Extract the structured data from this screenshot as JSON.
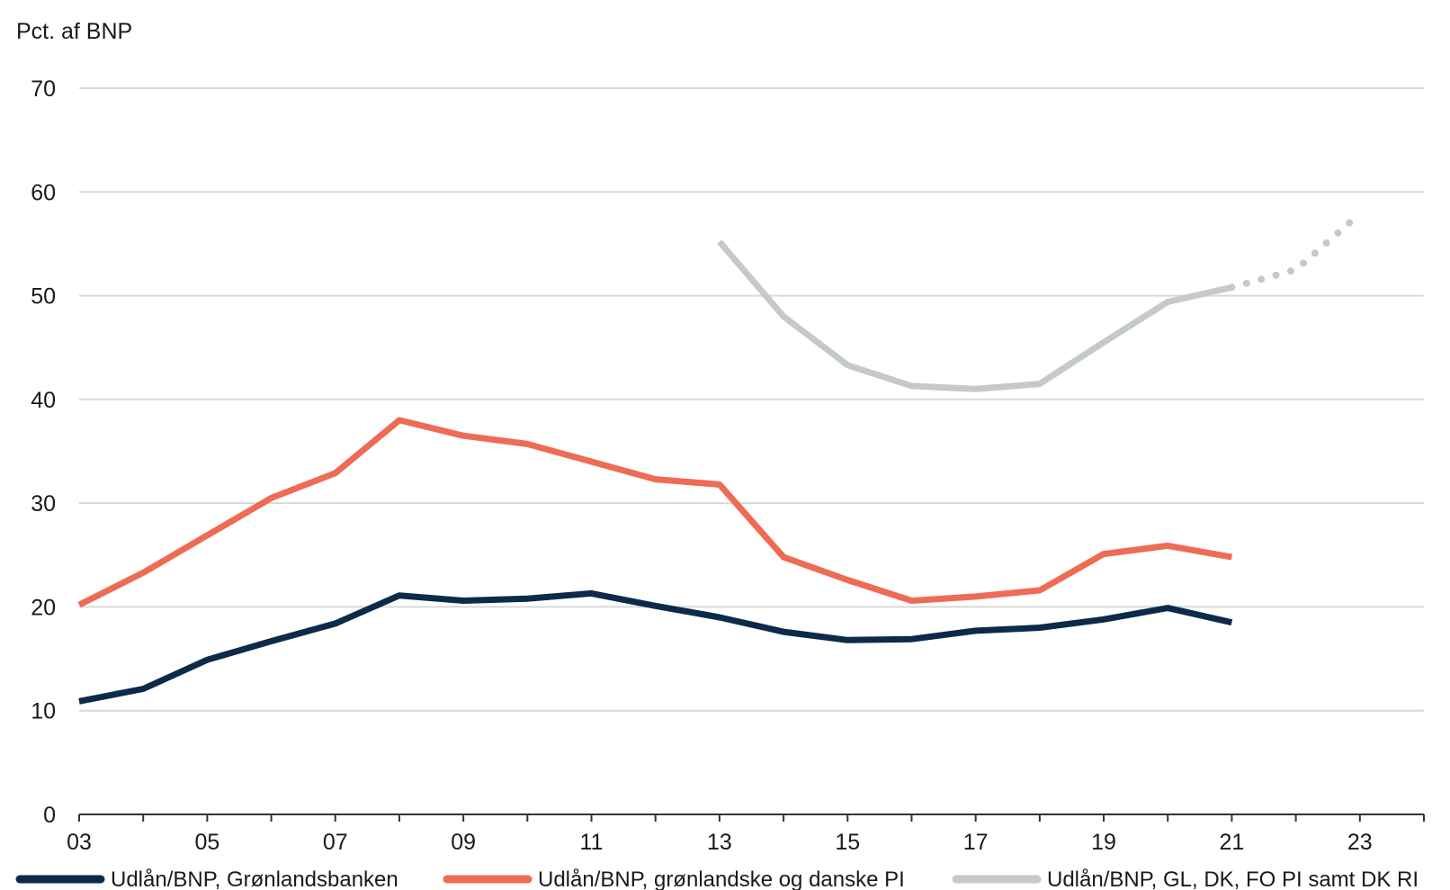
{
  "chart_data": {
    "type": "line",
    "ylabel": "Pct. af BNP",
    "ylim": [
      0,
      70
    ],
    "yticks": [
      0,
      10,
      20,
      30,
      40,
      50,
      60,
      70
    ],
    "xlim": [
      2003,
      2024
    ],
    "xticks": [
      {
        "value": 2003,
        "label": "03"
      },
      {
        "value": 2005,
        "label": "05"
      },
      {
        "value": 2007,
        "label": "07"
      },
      {
        "value": 2009,
        "label": "09"
      },
      {
        "value": 2011,
        "label": "11"
      },
      {
        "value": 2013,
        "label": "13"
      },
      {
        "value": 2015,
        "label": "15"
      },
      {
        "value": 2017,
        "label": "17"
      },
      {
        "value": 2019,
        "label": "19"
      },
      {
        "value": 2021,
        "label": "21"
      },
      {
        "value": 2023,
        "label": "23"
      }
    ],
    "grid": "horizontal",
    "legend_position": "bottom",
    "series": [
      {
        "name": "Udlån/BNP, Grønlandsbanken",
        "color": "#0d2a4a",
        "style": "solid",
        "x": [
          2003,
          2004,
          2005,
          2006,
          2007,
          2008,
          2009,
          2010,
          2011,
          2012,
          2013,
          2014,
          2015,
          2016,
          2017,
          2018,
          2019,
          2020,
          2021
        ],
        "values": [
          10.9,
          12.1,
          14.9,
          16.7,
          18.4,
          21.1,
          20.6,
          20.8,
          21.3,
          20.1,
          19.0,
          17.6,
          16.8,
          16.9,
          17.7,
          18.0,
          18.8,
          19.9,
          18.5
        ]
      },
      {
        "name": "Udlån/BNP, grønlandske og danske PI",
        "color": "#ee6b55",
        "style": "solid",
        "x": [
          2003,
          2004,
          2005,
          2006,
          2007,
          2008,
          2009,
          2010,
          2011,
          2012,
          2013,
          2014,
          2015,
          2016,
          2017,
          2018,
          2019,
          2020,
          2021
        ],
        "values": [
          20.2,
          23.3,
          26.9,
          30.5,
          32.9,
          38.0,
          36.5,
          35.7,
          34.0,
          32.3,
          31.8,
          24.8,
          22.6,
          20.6,
          21.0,
          21.6,
          25.1,
          25.9,
          24.8
        ]
      },
      {
        "name": "Udlån/BNP, GL, DK, FO PI samt DK RI",
        "color": "#c4c9cb",
        "style": "solid",
        "x": [
          2013,
          2014,
          2015,
          2016,
          2017,
          2018,
          2019,
          2020,
          2021
        ],
        "values": [
          55.2,
          48.0,
          43.3,
          41.3,
          41.0,
          41.5,
          45.5,
          49.4,
          50.8
        ],
        "forecast": {
          "style": "dotted",
          "x": [
            2021,
            2022,
            2023
          ],
          "values": [
            50.8,
            52.5,
            57.9
          ]
        }
      }
    ]
  }
}
